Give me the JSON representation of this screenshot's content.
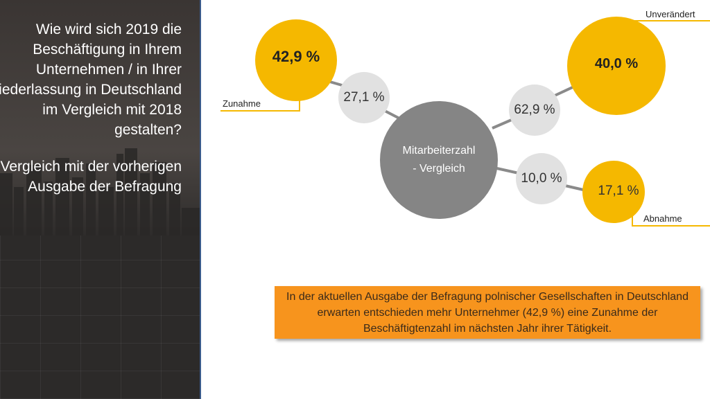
{
  "sidebar": {
    "question": "Wie wird sich 2019 die Beschäftigung in Ihrem Unternehmen / in Ihrer Niederlassung in Deutschland im Vergleich mit 2018 gestalten?",
    "subtitle": "Vergleich mit der vorherigen Ausgabe der Befragung"
  },
  "diagram": {
    "center_line1": "Mitarbeiterzahl",
    "center_line2": "- Vergleich",
    "increase": {
      "label": "Zunahme",
      "previous": "27,1 %",
      "current": "42,9 %"
    },
    "unchanged": {
      "label": "Unverändert",
      "previous": "62,9 %",
      "current": "40,0 %"
    },
    "decrease": {
      "label": "Abnahme",
      "previous": "10,0 %",
      "current": "17,1 %"
    }
  },
  "note": "In der aktuellen Ausgabe der Befragung polnischer Gesellschaften in Deutschland erwarten entschieden mehr Unternehmer (42,9 %) eine Zunahme der Beschäftigtenzahl im nächsten Jahr ihrer Tätigkeit.",
  "colors": {
    "yellow": "#f5b800",
    "gray": "#858585",
    "light_gray": "#e1e1e1",
    "orange": "#f7941d"
  }
}
